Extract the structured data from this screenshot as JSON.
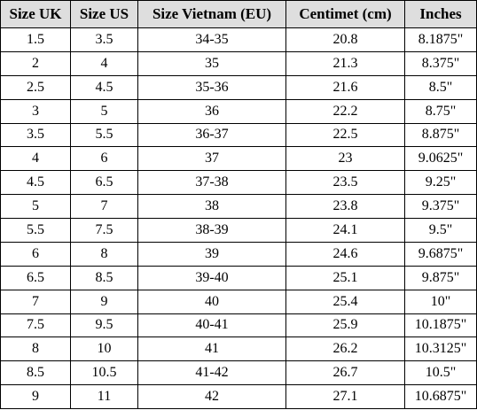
{
  "table": {
    "headers": [
      "Size UK",
      "Size US",
      "Size Vietnam (EU)",
      "Centimet (cm)",
      "Inches"
    ],
    "rows": [
      [
        "1.5",
        "3.5",
        "34-35",
        "20.8",
        "8.1875\""
      ],
      [
        "2",
        "4",
        "35",
        "21.3",
        "8.375\""
      ],
      [
        "2.5",
        "4.5",
        "35-36",
        "21.6",
        "8.5\""
      ],
      [
        "3",
        "5",
        "36",
        "22.2",
        "8.75\""
      ],
      [
        "3.5",
        "5.5",
        "36-37",
        "22.5",
        "8.875\""
      ],
      [
        "4",
        "6",
        "37",
        "23",
        "9.0625\""
      ],
      [
        "4.5",
        "6.5",
        "37-38",
        "23.5",
        "9.25\""
      ],
      [
        "5",
        "7",
        "38",
        "23.8",
        "9.375\""
      ],
      [
        "5.5",
        "7.5",
        "38-39",
        "24.1",
        "9.5\""
      ],
      [
        "6",
        "8",
        "39",
        "24.6",
        "9.6875\""
      ],
      [
        "6.5",
        "8.5",
        "39-40",
        "25.1",
        "9.875\""
      ],
      [
        "7",
        "9",
        "40",
        "25.4",
        "10\""
      ],
      [
        "7.5",
        "9.5",
        "40-41",
        "25.9",
        "10.1875\""
      ],
      [
        "8",
        "10",
        "41",
        "26.2",
        "10.3125\""
      ],
      [
        "8.5",
        "10.5",
        "41-42",
        "26.7",
        "10.5\""
      ],
      [
        "9",
        "11",
        "42",
        "27.1",
        "10.6875\""
      ]
    ]
  },
  "colors": {
    "header_background": "#dedede",
    "border": "#000000",
    "text": "#000000"
  }
}
